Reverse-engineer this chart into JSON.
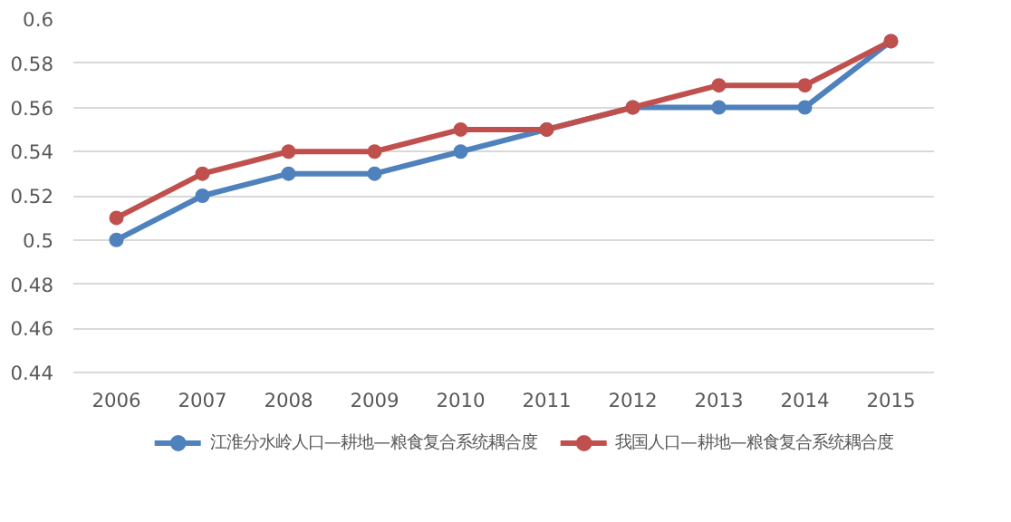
{
  "chart_data": {
    "type": "line",
    "categories": [
      "2006",
      "2007",
      "2008",
      "2009",
      "2010",
      "2011",
      "2012",
      "2013",
      "2014",
      "2015"
    ],
    "series": [
      {
        "name": "江淮分水岭人口—耕地—粮食复合系统耦合度",
        "color": "#4f81bd",
        "values": [
          0.5,
          0.52,
          0.53,
          0.53,
          0.54,
          0.55,
          0.56,
          0.56,
          0.56,
          0.59
        ]
      },
      {
        "name": "我国人口—耕地—粮食复合系统耦合度",
        "color": "#c0504d",
        "values": [
          0.51,
          0.53,
          0.54,
          0.54,
          0.55,
          0.55,
          0.56,
          0.57,
          0.57,
          0.59
        ]
      }
    ],
    "ylim": [
      0.44,
      0.6
    ],
    "yticks": [
      0.44,
      0.46,
      0.48,
      0.5,
      0.52,
      0.54,
      0.56,
      0.58,
      0.6
    ],
    "grid": "y",
    "legend": "bottom",
    "marker": "circle",
    "line_style": "solid"
  }
}
